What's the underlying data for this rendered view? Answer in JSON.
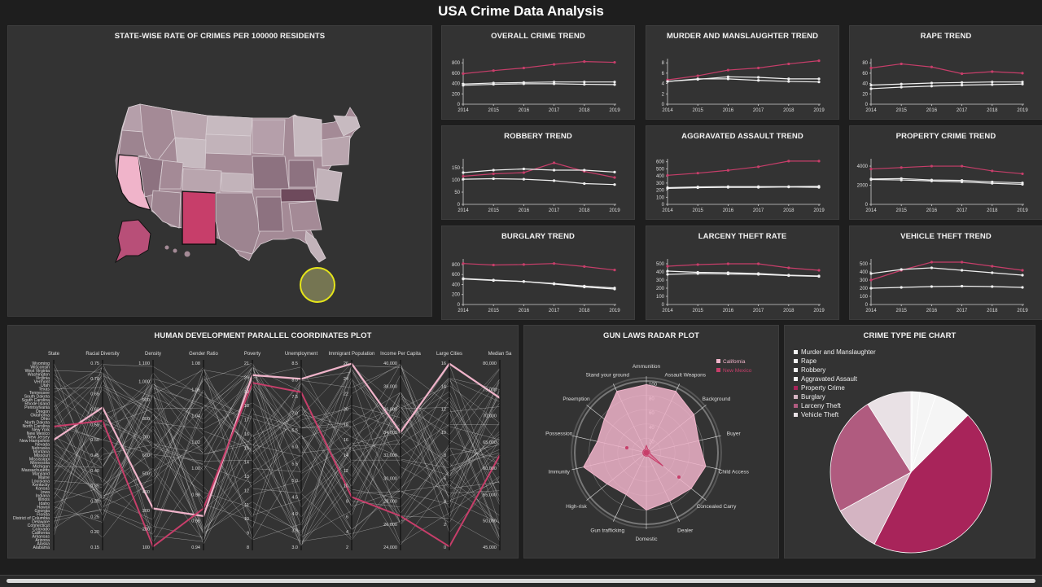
{
  "title": "USA Crime Data Analysis",
  "panels": {
    "map": "STATE-WISE RATE OF CRIMES PER 100000 RESIDENTS",
    "pcp": "HUMAN DEVELOPMENT PARALLEL COORDINATES PLOT",
    "radar": "GUN LAWS RADAR PLOT",
    "pie": "CRIME TYPE PIE CHART"
  },
  "colors": {
    "newMexico": "#c73e6a",
    "california": "#f0b4ca",
    "white": "#f0f0f0",
    "map_default": "#a48a96"
  },
  "trend_years": [
    "2014",
    "2015",
    "2016",
    "2017",
    "2018",
    "2019"
  ],
  "trends": [
    {
      "title": "OVERALL CRIME TREND",
      "yticks": [
        "0",
        "200",
        "400",
        "600",
        "800"
      ],
      "ymax": 850,
      "series": [
        {
          "color": "#c73e6a",
          "values": [
            590,
            650,
            700,
            770,
            825,
            810
          ]
        },
        {
          "color": "#f0f0f0",
          "values": [
            390,
            410,
            420,
            430,
            430,
            430
          ]
        },
        {
          "color": "#f0f0f0",
          "values": [
            365,
            385,
            395,
            395,
            385,
            380
          ]
        }
      ]
    },
    {
      "title": "MURDER AND MANSLAUGHTER TREND",
      "yticks": [
        "0",
        "2",
        "4",
        "6",
        "8"
      ],
      "ymax": 8.5,
      "series": [
        {
          "color": "#c73e6a",
          "values": [
            4.7,
            5.5,
            6.6,
            7.0,
            7.8,
            8.4
          ]
        },
        {
          "color": "#f0f0f0",
          "values": [
            4.4,
            4.8,
            5.3,
            5.2,
            4.9,
            4.9
          ]
        },
        {
          "color": "#f0f0f0",
          "values": [
            4.4,
            4.9,
            4.9,
            4.6,
            4.4,
            4.3
          ]
        }
      ]
    },
    {
      "title": "RAPE TREND",
      "yticks": [
        "0",
        "20",
        "40",
        "60",
        "80"
      ],
      "ymax": 85,
      "series": [
        {
          "color": "#c73e6a",
          "values": [
            70,
            78,
            72,
            59,
            63,
            60
          ]
        },
        {
          "color": "#f0f0f0",
          "values": [
            37,
            39,
            41,
            42,
            43,
            43
          ]
        },
        {
          "color": "#f0f0f0",
          "values": [
            30,
            33,
            35,
            37,
            38,
            39
          ]
        }
      ]
    },
    {
      "title": "ROBBERY TREND",
      "yticks": [
        "0",
        "50",
        "100",
        "150"
      ],
      "ymax": 180,
      "series": [
        {
          "color": "#c73e6a",
          "values": [
            115,
            125,
            130,
            170,
            135,
            110
          ]
        },
        {
          "color": "#f0f0f0",
          "values": [
            130,
            140,
            145,
            140,
            140,
            132
          ]
        },
        {
          "color": "#f0f0f0",
          "values": [
            103,
            105,
            103,
            97,
            85,
            81
          ]
        }
      ]
    },
    {
      "title": "AGGRAVATED ASSAULT TREND",
      "yticks": [
        "0",
        "100",
        "200",
        "300",
        "400",
        "500",
        "600"
      ],
      "ymax": 620,
      "series": [
        {
          "color": "#c73e6a",
          "values": [
            410,
            440,
            480,
            530,
            610,
            610
          ]
        },
        {
          "color": "#f0f0f0",
          "values": [
            235,
            245,
            250,
            250,
            250,
            255
          ]
        },
        {
          "color": "#f0f0f0",
          "values": [
            225,
            235,
            240,
            240,
            245,
            240
          ]
        }
      ]
    },
    {
      "title": "PROPERTY CRIME TREND",
      "yticks": [
        "0",
        "2000",
        "4000"
      ],
      "ymax": 4600,
      "series": [
        {
          "color": "#c73e6a",
          "values": [
            3700,
            3850,
            4000,
            4000,
            3500,
            3200
          ]
        },
        {
          "color": "#f0f0f0",
          "values": [
            2650,
            2700,
            2550,
            2500,
            2350,
            2250
          ]
        },
        {
          "color": "#f0f0f0",
          "values": [
            2600,
            2550,
            2450,
            2350,
            2200,
            2100
          ]
        }
      ]
    },
    {
      "title": "BURGLARY TREND",
      "yticks": [
        "0",
        "200",
        "400",
        "600",
        "800"
      ],
      "ymax": 880,
      "series": [
        {
          "color": "#c73e6a",
          "values": [
            820,
            790,
            800,
            820,
            760,
            690
          ]
        },
        {
          "color": "#f0f0f0",
          "values": [
            520,
            490,
            460,
            420,
            370,
            330
          ]
        },
        {
          "color": "#f0f0f0",
          "values": [
            510,
            480,
            460,
            410,
            350,
            310
          ]
        }
      ]
    },
    {
      "title": "LARCENY THEFT RATE",
      "yticks": [
        "0",
        "100",
        "200",
        "300",
        "400",
        "500"
      ],
      "ymax": 540,
      "series": [
        {
          "color": "#c73e6a",
          "values": [
            470,
            490,
            500,
            500,
            450,
            420
          ]
        },
        {
          "color": "#f0f0f0",
          "values": [
            410,
            395,
            390,
            380,
            360,
            350
          ]
        },
        {
          "color": "#f0f0f0",
          "values": [
            370,
            380,
            375,
            370,
            355,
            345
          ]
        }
      ]
    },
    {
      "title": "VEHICLE THEFT TREND",
      "yticks": [
        "0",
        "100",
        "200",
        "300",
        "400",
        "500"
      ],
      "ymax": 540,
      "series": [
        {
          "color": "#c73e6a",
          "values": [
            300,
            420,
            520,
            520,
            470,
            420
          ]
        },
        {
          "color": "#f0f0f0",
          "values": [
            380,
            430,
            450,
            420,
            390,
            360
          ]
        },
        {
          "color": "#f0f0f0",
          "values": [
            200,
            210,
            220,
            225,
            220,
            210
          ]
        }
      ]
    }
  ],
  "pcp": {
    "axes": [
      {
        "label": "State",
        "ticks": []
      },
      {
        "label": "Racial Diversity",
        "ticks": [
          "0.75",
          "0.70",
          "0.65",
          "0.60",
          "0.55",
          "0.50",
          "0.45",
          "0.40",
          "0.35",
          "0.30",
          "0.25",
          "0.20",
          "0.15"
        ]
      },
      {
        "label": "Density",
        "ticks": [
          "1,100",
          "1,000",
          "900",
          "800",
          "700",
          "600",
          "500",
          "400",
          "300",
          "200",
          "100"
        ]
      },
      {
        "label": "Gender Ratio",
        "ticks": [
          "1.08",
          "1.06",
          "1.04",
          "1.02",
          "1.00",
          "0.98",
          "0.96",
          "0.94"
        ]
      },
      {
        "label": "Poverty",
        "ticks": [
          "21",
          "20",
          "19",
          "18",
          "17",
          "16",
          "15",
          "14",
          "13",
          "12",
          "11",
          "10",
          "9",
          "8"
        ]
      },
      {
        "label": "Unemployment",
        "ticks": [
          "8.5",
          "8.0",
          "7.5",
          "7.0",
          "6.5",
          "6.0",
          "5.5",
          "5.0",
          "4.5",
          "4.0",
          "3.5",
          "3.0"
        ]
      },
      {
        "label": "Immigrant Population",
        "ticks": [
          "26",
          "24",
          "22",
          "20",
          "18",
          "16",
          "14",
          "12",
          "10",
          "8",
          "6",
          "4",
          "2"
        ]
      },
      {
        "label": "Income Per Capita",
        "ticks": [
          "40,000",
          "38,000",
          "36,000",
          "34,000",
          "32,000",
          "30,000",
          "28,000",
          "26,000",
          "24,000"
        ]
      },
      {
        "label": "Large Cities",
        "ticks": [
          "16",
          "14",
          "12",
          "10",
          "8",
          "6",
          "4",
          "2",
          "0"
        ]
      },
      {
        "label": "Median Sa",
        "ticks": [
          "80,000",
          "75,000",
          "70,000",
          "65,000",
          "60,000",
          "55,000",
          "50,000",
          "45,000"
        ]
      }
    ],
    "states": [
      "Wyoming",
      "Wisconsin",
      "West Virginia",
      "Washington",
      "Virginia",
      "Vermont",
      "Utah",
      "Texas",
      "Tennessee",
      "South Dakota",
      "South Carolina",
      "Rhode Island",
      "Pennsylvania",
      "Oregon",
      "Oklahoma",
      "Ohio",
      "North Dakota",
      "North Carolina",
      "New York",
      "New Mexico",
      "New Jersey",
      "New Hampshire",
      "Nevada",
      "Nebraska",
      "Montana",
      "Missouri",
      "Mississippi",
      "Minnesota",
      "Michigan",
      "Massachusetts",
      "Maryland",
      "Maine",
      "Louisiana",
      "Kentucky",
      "Kansas",
      "Iowa",
      "Indiana",
      "Illinois",
      "Idaho",
      "Hawaii",
      "Georgia",
      "Florida",
      "District of Columbia",
      "Delaware",
      "Connecticut",
      "Colorado",
      "California",
      "Arkansas",
      "Arizona",
      "Alaska",
      "Alabama"
    ]
  },
  "radar": {
    "legend": [
      {
        "label": "California",
        "color": "#f0b4ca"
      },
      {
        "label": "New Mexico",
        "color": "#c73e6a"
      }
    ],
    "axes": [
      "Ammunition",
      "Assault Weapons",
      "Background",
      "Buyer",
      "Child Access",
      "Concealed Carry",
      "Dealer",
      "Domestic",
      "Gun trafficking",
      "High-risk",
      "Immunity",
      "Possession",
      "Preemption",
      "Stand your ground"
    ],
    "rticks": [
      "100",
      "80",
      "60",
      "40",
      "20"
    ],
    "california": [
      95,
      95,
      85,
      75,
      85,
      80,
      75,
      80,
      65,
      70,
      90,
      70,
      75,
      95
    ],
    "newmexico": [
      10,
      5,
      5,
      5,
      5,
      30,
      5,
      5,
      5,
      5,
      5,
      5,
      5,
      5
    ]
  },
  "pie": {
    "legend": [
      {
        "label": "Murder and Manslaughter",
        "color": "#f5f5f5"
      },
      {
        "label": "Rape",
        "color": "#f5f5f5"
      },
      {
        "label": "Robbery",
        "color": "#f5f5f5"
      },
      {
        "label": "Aggravated Assault",
        "color": "#f5f5f5"
      },
      {
        "label": "Property Crime",
        "color": "#a8245a"
      },
      {
        "label": "Burglary",
        "color": "#d4b4c2"
      },
      {
        "label": "Larceny Theft",
        "color": "#b05b7f"
      },
      {
        "label": "Vehicle Theft",
        "color": "#e9e1e5"
      }
    ],
    "values": [
      0.3,
      1.5,
      3.2,
      7.5,
      45,
      9.5,
      24,
      9
    ]
  }
}
